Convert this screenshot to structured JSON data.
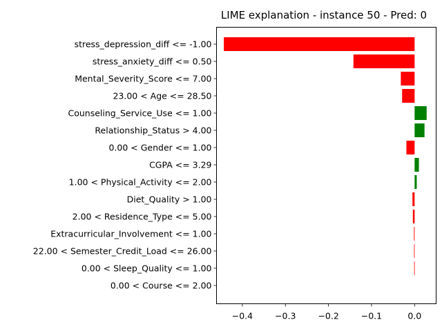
{
  "chart_data": {
    "type": "bar",
    "orientation": "horizontal",
    "title": "LIME explanation - instance 50 - Pred: 0",
    "xlabel": "",
    "ylabel": "",
    "xlim": [
      -0.46,
      0.05
    ],
    "xticks": [
      -0.4,
      -0.3,
      -0.2,
      -0.1,
      0.0
    ],
    "xtick_labels": [
      "−0.4",
      "−0.3",
      "−0.2",
      "−0.1",
      "0.0"
    ],
    "grid": false,
    "colors": {
      "positive": "#008000",
      "negative": "#ff0000"
    },
    "categories": [
      "stress_depression_diff <= -1.00",
      "stress_anxiety_diff <= 0.50",
      "Mental_Severity_Score <= 7.00",
      "23.00 < Age <= 28.50",
      "Counseling_Service_Use <= 1.00",
      "Relationship_Status > 4.00",
      "0.00 < Gender <= 1.00",
      "CGPA <= 3.29",
      "1.00 < Physical_Activity <= 2.00",
      "Diet_Quality > 1.00",
      "2.00 < Residence_Type <= 5.00",
      "Extracurricular_Involvement <= 1.00",
      "22.00 < Semester_Credit_Load <= 26.00",
      "0.00 < Sleep_Quality <= 1.00",
      "0.00 < Course <= 2.00"
    ],
    "values": [
      -0.443,
      -0.142,
      -0.032,
      -0.029,
      0.028,
      0.023,
      -0.019,
      0.01,
      0.005,
      -0.005,
      -0.004,
      -0.0015,
      -0.0012,
      -0.001,
      0.0
    ]
  }
}
